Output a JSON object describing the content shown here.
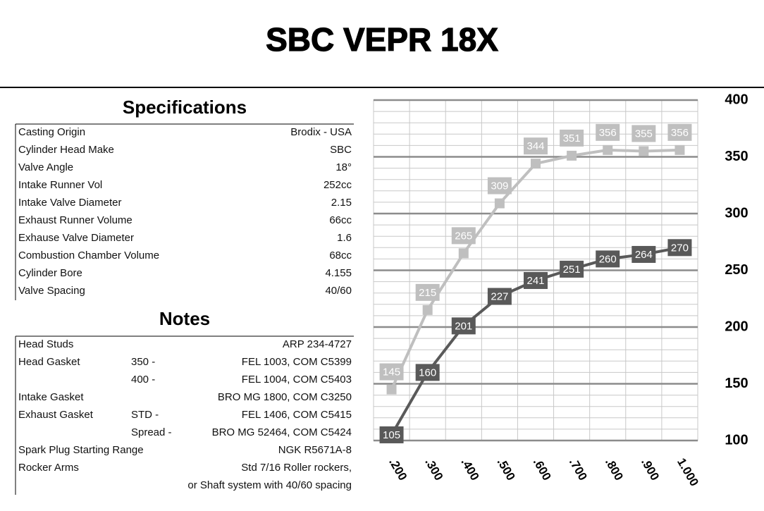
{
  "title": "SBC VEPR 18X",
  "specifications": {
    "heading": "Specifications",
    "rows": [
      {
        "label": "Casting Origin",
        "value": "Brodix - USA"
      },
      {
        "label": "Cylinder Head Make",
        "value": "SBC"
      },
      {
        "label": "Valve Angle",
        "value": "18°"
      },
      {
        "label": "Intake Runner Vol",
        "value": "252cc"
      },
      {
        "label": "Intake Valve Diameter",
        "value": "2.15"
      },
      {
        "label": "Exhaust Runner Volume",
        "value": "66cc"
      },
      {
        "label": "Exhause Valve Diameter",
        "value": "1.6"
      },
      {
        "label": "Combustion Chamber Volume",
        "value": "68cc"
      },
      {
        "label": "Cylinder Bore",
        "value": "4.155"
      },
      {
        "label": "Valve Spacing",
        "value": "40/60"
      }
    ]
  },
  "notes": {
    "heading": "Notes",
    "rows": [
      {
        "label": "Head Studs",
        "value": "ARP 234-4727"
      },
      {
        "label": "Head Gasket",
        "sub": "350 -",
        "value": "FEL 1003, COM C5399"
      },
      {
        "sub": "400 -",
        "value": "FEL 1004, COM C5403"
      },
      {
        "label": "Intake Gasket",
        "value": "BRO MG 1800, COM C3250"
      },
      {
        "label": "Exhaust Gasket",
        "sub": "STD -",
        "value": "FEL 1406, COM C5415"
      },
      {
        "sub": "Spread -",
        "value": "BRO MG 52464, COM C5424"
      },
      {
        "label": "Spark Plug Starting Range",
        "value": "NGK R5671A-8"
      },
      {
        "label": "Rocker Arms",
        "value": "Std 7/16 Roller rockers,"
      },
      {
        "value": "or Shaft system with 40/60 spacing"
      }
    ]
  },
  "chart_data": {
    "type": "line",
    "categories": [
      ".200",
      ".300",
      ".400",
      ".500",
      ".600",
      ".700",
      ".800",
      ".900",
      "1.000"
    ],
    "series": [
      {
        "color": "#bfbfbf",
        "values": [
          145,
          215,
          265,
          309,
          344,
          351,
          356,
          355,
          356
        ]
      },
      {
        "color": "#595959",
        "values": [
          105,
          160,
          201,
          227,
          241,
          251,
          260,
          264,
          270
        ]
      }
    ],
    "ylim": [
      100,
      400
    ],
    "yticks": [
      100,
      150,
      200,
      250,
      300,
      350,
      400
    ],
    "grid": true
  }
}
